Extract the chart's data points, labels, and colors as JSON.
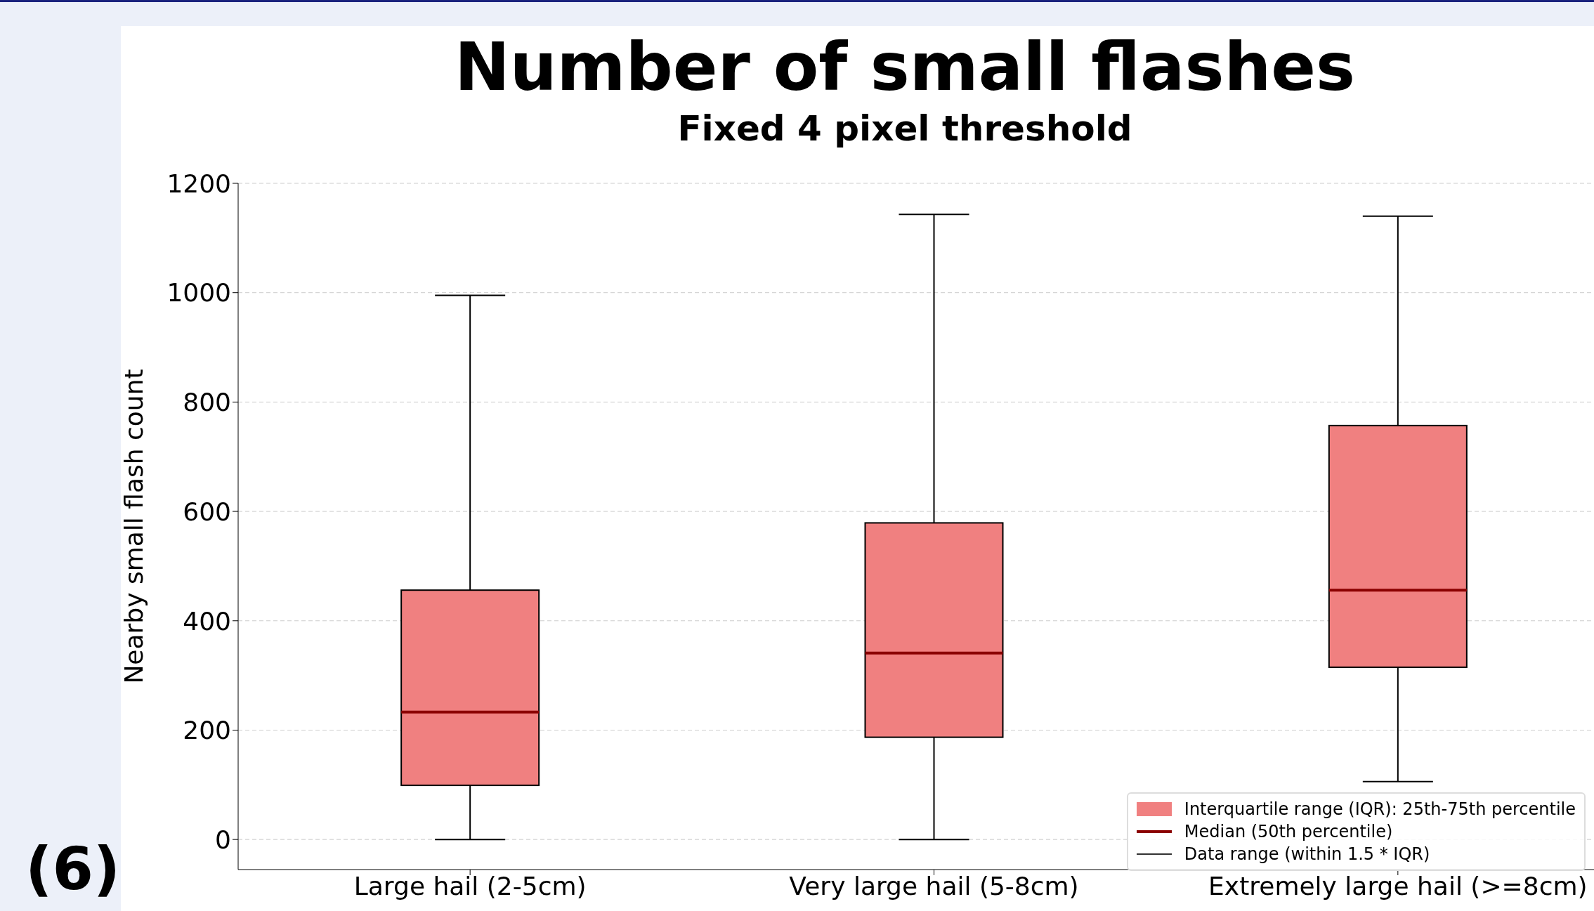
{
  "chart_data": {
    "type": "box",
    "title": "Number of small flashes",
    "subtitle": "Fixed 4 pixel threshold",
    "ylabel": "Nearby small flash count",
    "categories": [
      "Large hail (2-5cm)",
      "Very large hail (5-8cm)",
      "Extremely large hail (>=8cm)"
    ],
    "series": [
      {
        "name": "Interquartile range (IQR): 25th-75th percentile",
        "color": "#f08080",
        "boxes": [
          {
            "low": 0,
            "q1": 99,
            "median": 233,
            "q3": 456,
            "high": 995
          },
          {
            "low": 0,
            "q1": 187,
            "median": 341,
            "q3": 579,
            "high": 1143
          },
          {
            "low": 106,
            "q1": 315,
            "median": 456,
            "q3": 757,
            "high": 1140
          }
        ]
      }
    ],
    "ylim": [
      -55,
      1200
    ],
    "yticks": [
      0,
      200,
      400,
      600,
      800,
      1000,
      1200
    ],
    "grid": "y",
    "legend": "bottom right",
    "annotations": [
      "Median (50th percentile)",
      "Data range (within 1.5 * IQR)",
      "(6)"
    ]
  }
}
